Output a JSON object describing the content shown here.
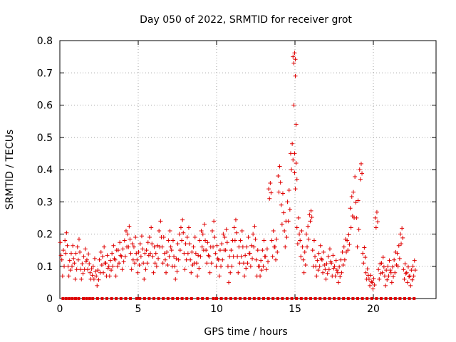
{
  "chart_data": {
    "type": "scatter",
    "title": "Day 050 of 2022, SRMTID for receiver grot",
    "xlabel": "GPS time / hours",
    "ylabel": "SRMTID / TECUs",
    "xlim": [
      0,
      24
    ],
    "ylim": [
      0,
      0.8
    ],
    "xticks": [
      0,
      5,
      10,
      15,
      20
    ],
    "xtick_labels": [
      "0",
      "5",
      "10",
      "15",
      "20"
    ],
    "yticks": [
      0,
      0.1,
      0.2,
      0.3,
      0.4,
      0.5,
      0.6,
      0.7,
      0.8
    ],
    "ytick_labels": [
      "0",
      "0.1",
      "0.2",
      "0.3",
      "0.4",
      "0.5",
      "0.6",
      "0.7",
      "0.8"
    ],
    "grid": true,
    "marker": "+",
    "color": "#e00000",
    "series": [
      {
        "name": "SRMTID",
        "x": [
          0.0,
          0.2,
          0.4,
          0.6,
          0.8,
          1.0,
          1.2,
          1.4,
          1.6,
          1.8,
          2.0,
          2.2,
          2.4,
          2.6,
          2.8,
          3.0,
          3.2,
          3.4,
          3.6,
          3.8,
          4.0,
          4.2,
          4.4,
          4.6,
          4.8,
          5.0,
          5.2,
          5.4,
          5.6,
          5.8,
          6.0,
          6.2,
          6.4,
          6.6,
          6.8,
          7.0,
          7.2,
          7.4,
          7.6,
          7.8,
          8.0,
          8.2,
          8.4,
          8.6,
          8.8,
          9.0,
          9.2,
          9.4,
          9.6,
          9.8,
          10.0,
          10.2,
          10.4,
          10.6,
          10.8,
          11.0,
          11.2,
          11.4,
          11.6,
          11.8,
          12.0,
          12.2,
          12.4,
          12.6,
          12.8,
          13.0,
          13.2,
          13.4,
          13.6,
          13.8,
          14.0,
          14.2,
          14.4,
          14.6,
          14.8,
          14.95,
          15.0,
          15.05,
          15.2,
          15.4,
          15.6,
          15.8,
          16.0,
          16.2,
          16.4,
          16.6,
          16.8,
          17.0,
          17.2,
          17.4,
          17.6,
          17.8,
          18.0,
          18.2,
          18.4,
          18.6,
          18.8,
          19.0,
          19.2,
          19.4,
          19.6,
          19.8,
          20.0,
          20.2,
          20.4,
          20.6,
          20.8,
          21.0,
          21.2,
          21.4,
          21.6,
          21.8,
          22.0,
          22.2,
          22.4,
          22.6
        ],
        "y": [
          0.15,
          0.12,
          0.18,
          0.1,
          0.14,
          0.11,
          0.16,
          0.09,
          0.13,
          0.12,
          0.08,
          0.1,
          0.07,
          0.12,
          0.13,
          0.11,
          0.1,
          0.14,
          0.12,
          0.15,
          0.13,
          0.18,
          0.2,
          0.14,
          0.16,
          0.12,
          0.17,
          0.11,
          0.15,
          0.19,
          0.13,
          0.14,
          0.21,
          0.16,
          0.12,
          0.18,
          0.15,
          0.1,
          0.17,
          0.22,
          0.14,
          0.19,
          0.12,
          0.16,
          0.11,
          0.18,
          0.2,
          0.15,
          0.13,
          0.21,
          0.14,
          0.12,
          0.17,
          0.19,
          0.1,
          0.15,
          0.22,
          0.13,
          0.18,
          0.11,
          0.16,
          0.14,
          0.2,
          0.12,
          0.1,
          0.15,
          0.13,
          0.34,
          0.18,
          0.16,
          0.38,
          0.29,
          0.21,
          0.3,
          0.45,
          0.75,
          0.6,
          0.39,
          0.22,
          0.18,
          0.12,
          0.2,
          0.26,
          0.15,
          0.1,
          0.14,
          0.12,
          0.09,
          0.13,
          0.11,
          0.1,
          0.08,
          0.12,
          0.16,
          0.18,
          0.28,
          0.33,
          0.25,
          0.4,
          0.14,
          0.08,
          0.06,
          0.05,
          0.25,
          0.09,
          0.11,
          0.07,
          0.1,
          0.08,
          0.12,
          0.14,
          0.2,
          0.09,
          0.08,
          0.07,
          0.1
        ],
        "spread": [
          0.04,
          0.05,
          0.04,
          0.03,
          0.04,
          0.05,
          0.04,
          0.03,
          0.04,
          0.03,
          0.02,
          0.04,
          0.03,
          0.04,
          0.05,
          0.04,
          0.03,
          0.04,
          0.05,
          0.04,
          0.04,
          0.05,
          0.04,
          0.05,
          0.05,
          0.04,
          0.04,
          0.05,
          0.04,
          0.05,
          0.05,
          0.04,
          0.05,
          0.05,
          0.04,
          0.05,
          0.05,
          0.04,
          0.05,
          0.04,
          0.05,
          0.05,
          0.04,
          0.05,
          0.04,
          0.05,
          0.05,
          0.04,
          0.05,
          0.05,
          0.04,
          0.05,
          0.05,
          0.04,
          0.05,
          0.05,
          0.04,
          0.05,
          0.05,
          0.04,
          0.05,
          0.04,
          0.04,
          0.05,
          0.03,
          0.05,
          0.04,
          0.03,
          0.05,
          0.04,
          0.05,
          0.06,
          0.05,
          0.06,
          0.05,
          0.02,
          0.15,
          0.05,
          0.05,
          0.05,
          0.04,
          0.04,
          0.02,
          0.05,
          0.03,
          0.04,
          0.04,
          0.03,
          0.04,
          0.04,
          0.03,
          0.03,
          0.04,
          0.04,
          0.03,
          0.06,
          0.08,
          0.09,
          0.03,
          0.03,
          0.02,
          0.02,
          0.02,
          0.03,
          0.03,
          0.03,
          0.03,
          0.03,
          0.03,
          0.04,
          0.04,
          0.03,
          0.03,
          0.03,
          0.03,
          0.03
        ]
      }
    ],
    "baseline_flags": {
      "y": 0,
      "x": [
        0.2,
        0.4,
        0.6,
        0.8,
        1.0,
        1.2,
        1.5,
        1.7,
        1.9,
        2.1,
        2.4,
        2.7,
        3.0,
        3.3,
        3.6,
        3.9,
        4.2,
        4.5,
        4.9,
        5.1,
        5.4,
        5.7,
        6.0,
        6.3,
        6.6,
        6.9,
        7.2,
        7.5,
        7.8,
        8.1,
        8.4,
        8.8,
        9.1,
        9.4,
        9.8,
        10.0,
        10.3,
        10.6,
        10.9,
        11.2,
        11.5,
        11.8,
        12.1,
        12.4,
        12.7,
        13.0,
        13.3,
        13.6,
        13.9,
        14.2,
        14.5,
        14.8,
        15.1,
        15.4,
        15.7,
        16.0,
        16.3,
        16.6,
        16.9,
        17.2,
        17.5,
        17.8,
        18.1,
        18.4,
        18.7,
        19.0,
        19.3,
        19.6,
        19.9,
        20.2,
        20.5,
        20.8,
        21.1,
        21.4,
        21.7,
        22.0,
        22.3,
        22.6
      ]
    }
  }
}
